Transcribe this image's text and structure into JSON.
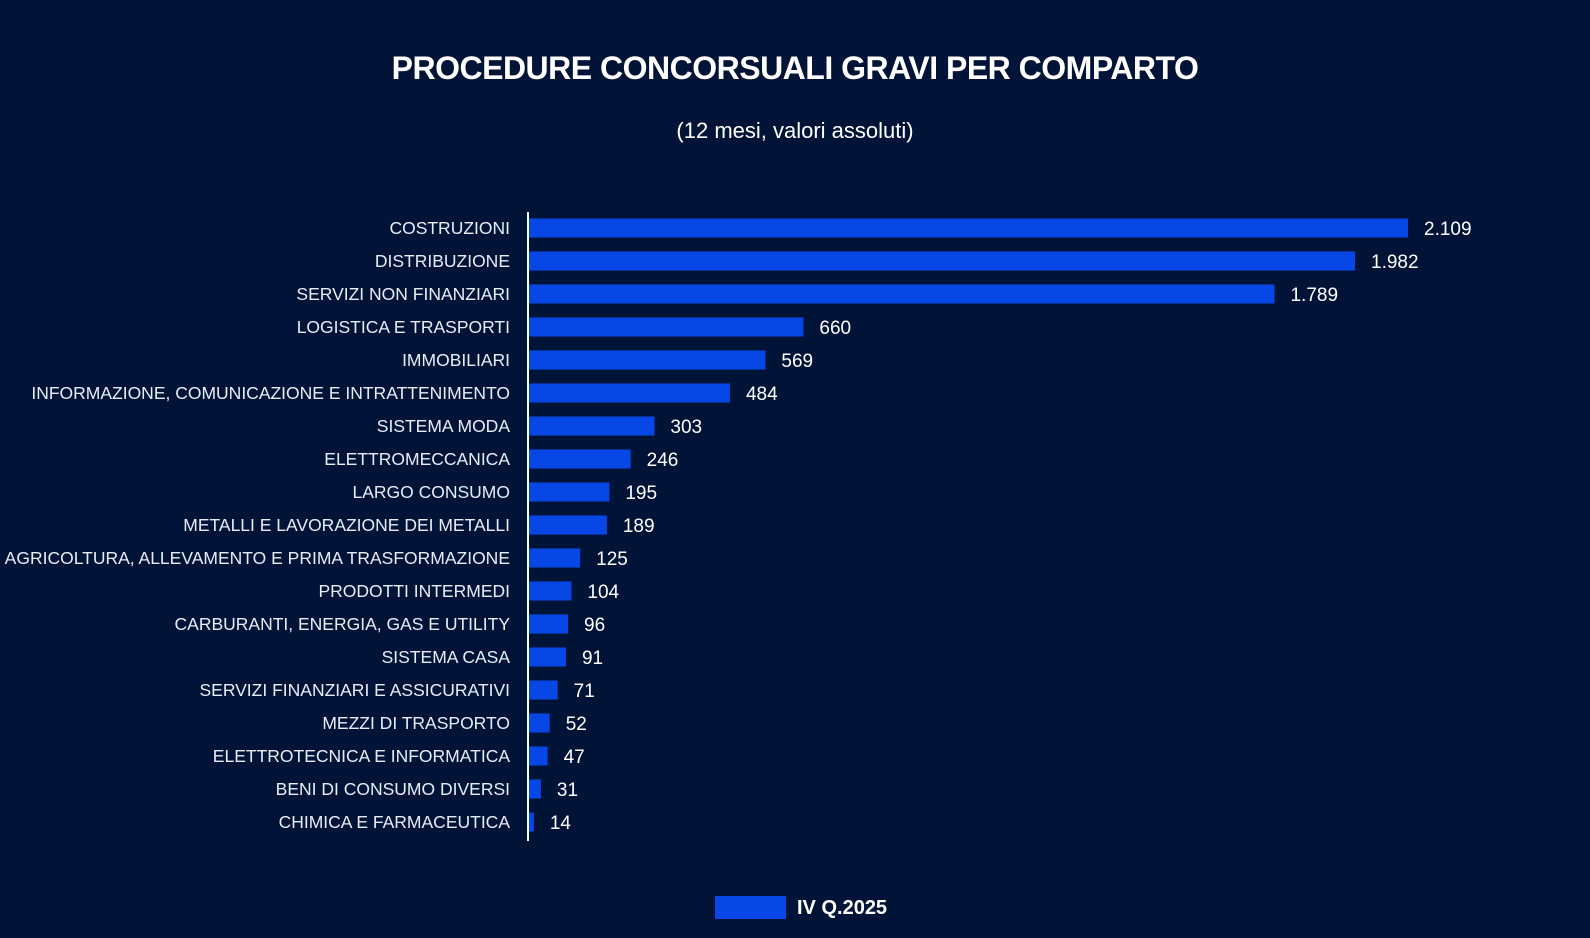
{
  "chart_data": {
    "type": "bar",
    "orientation": "horizontal",
    "title": "PROCEDURE CONCORSUALI GRAVI PER COMPARTO",
    "subtitle": "(12 mesi, valori assoluti)",
    "categories": [
      "COSTRUZIONI",
      "DISTRIBUZIONE",
      "SERVIZI NON FINANZIARI",
      "LOGISTICA E TRASPORTI",
      "IMMOBILIARI",
      "INFORMAZIONE, COMUNICAZIONE E INTRATTENIMENTO",
      "SISTEMA MODA",
      "ELETTROMECCANICA",
      "LARGO CONSUMO",
      "METALLI E LAVORAZIONE DEI METALLI",
      "AGRICOLTURA, ALLEVAMENTO E PRIMA TRASFORMAZIONE",
      "PRODOTTI INTERMEDI",
      "CARBURANTI, ENERGIA, GAS E UTILITY",
      "SISTEMA CASA",
      "SERVIZI FINANZIARI E ASSICURATIVI",
      "MEZZI DI TRASPORTO",
      "ELETTROTECNICA E INFORMATICA",
      "BENI DI CONSUMO DIVERSI",
      "CHIMICA E FARMACEUTICA"
    ],
    "series": [
      {
        "name": "IV Q.2025",
        "values": [
          2109,
          1982,
          1789,
          660,
          569,
          484,
          303,
          246,
          195,
          189,
          125,
          104,
          96,
          91,
          71,
          52,
          47,
          31,
          14
        ],
        "value_labels": [
          "2.109",
          "1.982",
          "1.789",
          "660",
          "569",
          "484",
          "303",
          "246",
          "195",
          "189",
          "125",
          "104",
          "96",
          "91",
          "71",
          "52",
          "47",
          "31",
          "14"
        ]
      }
    ],
    "xlim": [
      0,
      2109
    ],
    "grid": false,
    "legend_position": "bottom-center"
  },
  "colors": {
    "background": "#011438",
    "bar": "#0747e6",
    "text": "#ffffff",
    "axis": "#ffffff"
  }
}
